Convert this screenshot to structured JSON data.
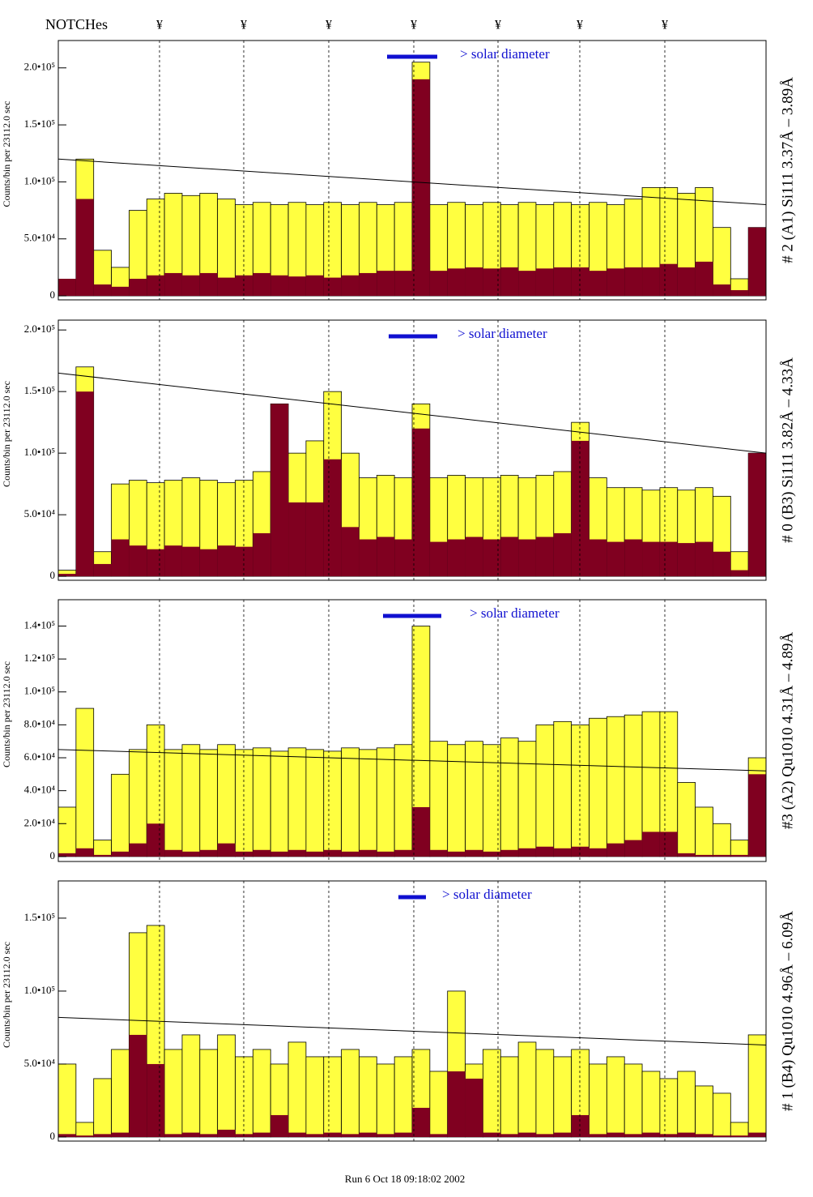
{
  "header": {
    "title": "NOTCHes",
    "notches": [
      "¥",
      "¥",
      "¥",
      "¥",
      "¥",
      "¥",
      "¥"
    ]
  },
  "footer": "Run 6  Oct 18 09:18:02 2002",
  "chart_data": [
    {
      "type": "histogram",
      "label": "# 2 (A1) Si111  3.37Å – 3.89Å",
      "annotation": "> solar diameter",
      "y_label": "Counts/bin per  23112.0 sec",
      "ylim": [
        -3500,
        224000
      ],
      "yticks": [
        0,
        {
          "value": 50000,
          "label": "5.0•10⁴"
        },
        {
          "value": 100000,
          "label": "1.0•10⁵"
        },
        {
          "value": 150000,
          "label": "1.5•10⁵"
        },
        {
          "value": 200000,
          "label": "2.0•10⁵"
        }
      ],
      "fit_line": [
        120000,
        80000
      ],
      "series": [
        {
          "color": "#ffff40",
          "values": [
            5000,
            120000,
            40000,
            25000,
            75000,
            85000,
            90000,
            88000,
            90000,
            85000,
            80000,
            82000,
            80000,
            82000,
            80000,
            82000,
            80000,
            82000,
            80000,
            82000,
            205000,
            80000,
            82000,
            80000,
            82000,
            80000,
            82000,
            80000,
            82000,
            80000,
            82000,
            80000,
            85000,
            95000,
            95000,
            90000,
            95000,
            60000,
            15000,
            60000
          ]
        },
        {
          "color": "#800020",
          "values": [
            15000,
            85000,
            10000,
            8000,
            15000,
            18000,
            20000,
            18000,
            20000,
            16000,
            18000,
            20000,
            18000,
            17000,
            18000,
            16000,
            18000,
            20000,
            22000,
            22000,
            190000,
            22000,
            24000,
            25000,
            24000,
            25000,
            22000,
            24000,
            25000,
            25000,
            22000,
            24000,
            25000,
            25000,
            28000,
            25000,
            30000,
            10000,
            5000,
            60000
          ]
        }
      ]
    },
    {
      "type": "histogram",
      "label": "# 0 (B3) Si111  3.82Å – 4.33Å",
      "annotation": "> solar diameter",
      "y_label": "Counts/bin per  23112.0 sec",
      "ylim": [
        -3200,
        208000
      ],
      "yticks": [
        0,
        {
          "value": 50000,
          "label": "5.0•10⁴"
        },
        {
          "value": 100000,
          "label": "1.0•10⁵"
        },
        {
          "value": 150000,
          "label": "1.5•10⁵"
        },
        {
          "value": 200000,
          "label": "2.0•10⁵"
        }
      ],
      "fit_line": [
        165000,
        100000
      ],
      "series": [
        {
          "color": "#ffff40",
          "values": [
            5000,
            170000,
            20000,
            75000,
            78000,
            76000,
            78000,
            80000,
            78000,
            76000,
            78000,
            85000,
            140000,
            100000,
            110000,
            150000,
            100000,
            80000,
            82000,
            80000,
            140000,
            80000,
            82000,
            80000,
            80000,
            82000,
            80000,
            82000,
            85000,
            125000,
            80000,
            72000,
            72000,
            70000,
            72000,
            70000,
            72000,
            65000,
            20000,
            100000
          ]
        },
        {
          "color": "#800020",
          "values": [
            2000,
            150000,
            10000,
            30000,
            25000,
            22000,
            25000,
            24000,
            22000,
            25000,
            24000,
            35000,
            140000,
            60000,
            60000,
            95000,
            40000,
            30000,
            32000,
            30000,
            120000,
            28000,
            30000,
            32000,
            30000,
            32000,
            30000,
            32000,
            35000,
            110000,
            30000,
            28000,
            30000,
            28000,
            28000,
            27000,
            28000,
            20000,
            5000,
            100000
          ]
        }
      ]
    },
    {
      "type": "histogram",
      "label": "#3 (A2) Qu1010  4.31Å – 4.89Å",
      "annotation": "> solar diameter",
      "y_label": "Counts/bin per  23112.0 sec",
      "ylim": [
        -3000,
        156000
      ],
      "yticks": [
        0,
        {
          "value": 20000,
          "label": "2.0•10⁴"
        },
        {
          "value": 40000,
          "label": "4.0•10⁴"
        },
        {
          "value": 60000,
          "label": "6.0•10⁴"
        },
        {
          "value": 80000,
          "label": "8.0•10⁴"
        },
        {
          "value": 100000,
          "label": "1.0•10⁵"
        },
        {
          "value": 120000,
          "label": "1.2•10⁵"
        },
        {
          "value": 140000,
          "label": "1.4•10⁵"
        }
      ],
      "fit_line": [
        65000,
        52000
      ],
      "series": [
        {
          "color": "#ffff40",
          "values": [
            30000,
            90000,
            10000,
            50000,
            65000,
            80000,
            65000,
            68000,
            65000,
            68000,
            65000,
            66000,
            64000,
            66000,
            65000,
            64000,
            66000,
            65000,
            66000,
            68000,
            140000,
            70000,
            68000,
            70000,
            68000,
            72000,
            70000,
            80000,
            82000,
            80000,
            84000,
            85000,
            86000,
            88000,
            88000,
            45000,
            30000,
            20000,
            10000,
            60000
          ]
        },
        {
          "color": "#800020",
          "values": [
            2000,
            5000,
            1000,
            3000,
            8000,
            20000,
            4000,
            3000,
            4000,
            8000,
            3000,
            4000,
            3000,
            4000,
            3000,
            4000,
            3000,
            4000,
            3000,
            4000,
            30000,
            4000,
            3000,
            4000,
            3000,
            4000,
            5000,
            6000,
            5000,
            6000,
            5000,
            8000,
            10000,
            15000,
            15000,
            2000,
            1000,
            1000,
            1000,
            50000
          ]
        }
      ]
    },
    {
      "type": "histogram",
      "label": "# 1 (B4) Qu1010 4.96Å – 6.09Å",
      "annotation": "> solar diameter",
      "y_label": "Counts/bin per  23112.0 sec",
      "ylim": [
        -2800,
        175500
      ],
      "yticks": [
        0,
        {
          "value": 50000,
          "label": "5.0•10⁴"
        },
        {
          "value": 100000,
          "label": "1.0•10⁵"
        },
        {
          "value": 150000,
          "label": "1.5•10⁵"
        }
      ],
      "fit_line": [
        82000,
        63000
      ],
      "series": [
        {
          "color": "#ffff40",
          "values": [
            50000,
            10000,
            40000,
            60000,
            140000,
            145000,
            60000,
            70000,
            60000,
            70000,
            55000,
            60000,
            50000,
            65000,
            55000,
            55000,
            60000,
            55000,
            50000,
            55000,
            60000,
            45000,
            100000,
            50000,
            60000,
            55000,
            65000,
            60000,
            55000,
            60000,
            50000,
            55000,
            50000,
            45000,
            40000,
            45000,
            35000,
            30000,
            10000,
            70000
          ]
        },
        {
          "color": "#800020",
          "values": [
            2000,
            1000,
            2000,
            3000,
            70000,
            50000,
            2000,
            3000,
            2000,
            5000,
            2000,
            3000,
            15000,
            3000,
            2000,
            3000,
            2000,
            3000,
            2000,
            3000,
            20000,
            2000,
            45000,
            40000,
            3000,
            2000,
            3000,
            2000,
            3000,
            15000,
            2000,
            3000,
            2000,
            3000,
            2000,
            3000,
            2000,
            1000,
            1000,
            3000
          ]
        }
      ]
    }
  ]
}
